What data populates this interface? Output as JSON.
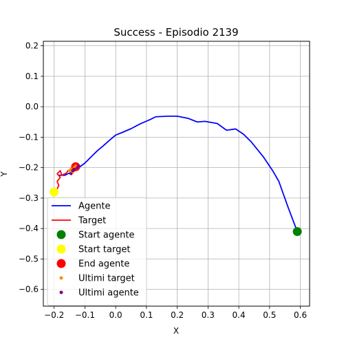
{
  "chart_data": {
    "type": "line",
    "title": "Success - Episodio 2139",
    "xlabel": "X",
    "ylabel": "Y",
    "xlim": [
      -0.235,
      0.63
    ],
    "ylim": [
      -0.655,
      0.215
    ],
    "xticks": [
      -0.2,
      -0.1,
      0.0,
      0.1,
      0.2,
      0.3,
      0.4,
      0.5,
      0.6
    ],
    "xtick_labels": [
      "−0.2",
      "−0.1",
      "0.0",
      "0.1",
      "0.2",
      "0.3",
      "0.4",
      "0.5",
      "0.6"
    ],
    "yticks": [
      0.2,
      0.1,
      0.0,
      -0.1,
      -0.2,
      -0.3,
      -0.4,
      -0.5,
      -0.6
    ],
    "ytick_labels": [
      "0.2",
      "0.1",
      "0.0",
      "−0.1",
      "−0.2",
      "−0.3",
      "−0.4",
      "−0.5",
      "−0.6"
    ],
    "grid": true,
    "legend_position": "lower-left",
    "series": [
      {
        "name": "Agente",
        "kind": "line",
        "color": "#0000ff",
        "x": [
          0.59,
          0.56,
          0.53,
          0.51,
          0.48,
          0.46,
          0.44,
          0.415,
          0.39,
          0.36,
          0.33,
          0.29,
          0.265,
          0.235,
          0.2,
          0.17,
          0.13,
          0.11,
          0.08,
          0.05,
          0.02,
          0.0,
          -0.02,
          -0.04,
          -0.06,
          -0.08,
          -0.1,
          -0.12,
          -0.14,
          -0.155,
          -0.165,
          -0.17,
          -0.18,
          -0.185
        ],
        "y": [
          -0.41,
          -0.33,
          -0.245,
          -0.21,
          -0.165,
          -0.14,
          -0.115,
          -0.09,
          -0.073,
          -0.077,
          -0.055,
          -0.048,
          -0.05,
          -0.038,
          -0.031,
          -0.031,
          -0.033,
          -0.043,
          -0.056,
          -0.072,
          -0.085,
          -0.093,
          -0.11,
          -0.128,
          -0.145,
          -0.165,
          -0.185,
          -0.2,
          -0.215,
          -0.22,
          -0.225,
          -0.225,
          -0.225,
          -0.225
        ]
      },
      {
        "name": "Target",
        "kind": "line",
        "color": "#ff0000",
        "x": [
          -0.2,
          -0.19,
          -0.185,
          -0.19,
          -0.18,
          -0.19,
          -0.18,
          -0.175,
          -0.16,
          -0.155,
          -0.145,
          -0.14,
          -0.13
        ],
        "y": [
          -0.28,
          -0.27,
          -0.258,
          -0.245,
          -0.232,
          -0.22,
          -0.21,
          -0.225,
          -0.218,
          -0.21,
          -0.205,
          -0.2,
          -0.195
        ]
      },
      {
        "name": "Start agente",
        "kind": "marker",
        "color": "#008000",
        "x": [
          0.59
        ],
        "y": [
          -0.41
        ]
      },
      {
        "name": "Start target",
        "kind": "marker",
        "color": "#ffff00",
        "x": [
          -0.2
        ],
        "y": [
          -0.28
        ]
      },
      {
        "name": "End agente",
        "kind": "marker",
        "color": "#ff0000",
        "x": [
          -0.13
        ],
        "y": [
          -0.197
        ]
      },
      {
        "name": "Ultimi target",
        "kind": "small-marker",
        "color": "#ff8c00",
        "x": [
          -0.14,
          -0.15,
          -0.145,
          -0.135,
          -0.13
        ],
        "y": [
          -0.215,
          -0.21,
          -0.205,
          -0.2,
          -0.195
        ]
      },
      {
        "name": "Ultimi agente",
        "kind": "small-marker",
        "color": "#800080",
        "x": [
          -0.145,
          -0.14,
          -0.135,
          -0.125,
          -0.12
        ],
        "y": [
          -0.22,
          -0.21,
          -0.205,
          -0.2,
          -0.195
        ]
      }
    ]
  }
}
